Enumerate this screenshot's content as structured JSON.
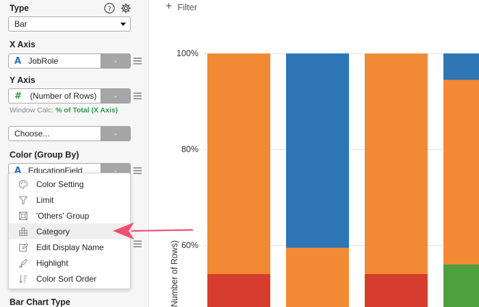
{
  "sidebar": {
    "type": {
      "label": "Type",
      "value": "Bar",
      "help_icon": "question-circle-icon",
      "settings_icon": "gear-icon"
    },
    "x_axis": {
      "label": "X Axis",
      "field": "JobRole",
      "field_type": "A",
      "minus": "-"
    },
    "y_axis": {
      "label": "Y Axis",
      "field": "(Number of Rows)",
      "field_type": "#",
      "minus": "-",
      "window_calc_label": "Window Calc:",
      "window_calc_value": "% of Total (X Axis)"
    },
    "choose": {
      "placeholder": "Choose...",
      "minus": "-"
    },
    "color": {
      "label": "Color (Group By)",
      "field": "EducationField",
      "field_type": "A",
      "minus": "-"
    },
    "bar_chart_type": {
      "label": "Bar Chart Type"
    }
  },
  "menu": {
    "items": [
      {
        "label": "Color Setting",
        "icon": "palette-icon"
      },
      {
        "label": "Limit",
        "icon": "filter-icon"
      },
      {
        "label": "'Others' Group",
        "icon": "group-icon"
      },
      {
        "label": "Category",
        "icon": "category-icon",
        "highlighted": true
      },
      {
        "label": "Edit Display Name",
        "icon": "edit-icon"
      },
      {
        "label": "Highlight",
        "icon": "highlighter-icon"
      },
      {
        "label": "Color Sort Order",
        "icon": "sort-icon"
      }
    ]
  },
  "main": {
    "filter_label": "Filter"
  },
  "colors": {
    "orange": "#f28a35",
    "blue": "#2e75b6",
    "red": "#d63d2e",
    "green": "#4e9f3d",
    "arrow": "#f04e6e"
  },
  "chart_data": {
    "type": "bar",
    "stacked": true,
    "ylabel": "Number of Rows)",
    "yticks": [
      "100%",
      "80%",
      "60%"
    ],
    "ylim_visible": [
      55,
      100
    ],
    "bars": [
      {
        "segments": [
          {
            "color": "red",
            "from": 0,
            "to": 54
          },
          {
            "color": "orange",
            "from": 54,
            "to": 100
          }
        ]
      },
      {
        "segments": [
          {
            "color": "orange",
            "from": 0,
            "to": 59.5
          },
          {
            "color": "blue",
            "from": 59.5,
            "to": 100
          }
        ]
      },
      {
        "segments": [
          {
            "color": "red",
            "from": 0,
            "to": 54
          },
          {
            "color": "orange",
            "from": 54,
            "to": 100
          }
        ]
      },
      {
        "segments": [
          {
            "color": "green",
            "from": 0,
            "to": 56
          },
          {
            "color": "orange",
            "from": 56,
            "to": 94.5
          },
          {
            "color": "blue",
            "from": 94.5,
            "to": 100
          }
        ]
      }
    ]
  }
}
